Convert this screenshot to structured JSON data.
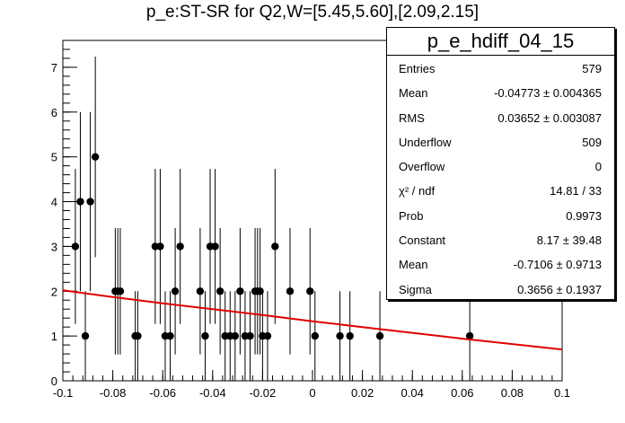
{
  "title": "p_e:ST-SR for Q2,W=[5.45,5.60],[2.09,2.15]",
  "stats": {
    "name": "p_e_hdiff_04_15",
    "rows": [
      {
        "label": "Entries",
        "value": "579"
      },
      {
        "label": "Mean",
        "value": "-0.04773 ± 0.004365"
      },
      {
        "label": "RMS",
        "value": "0.03652 ± 0.003087"
      },
      {
        "label": "Underflow",
        "value": "509"
      },
      {
        "label": "Overflow",
        "value": "0"
      },
      {
        "label": "χ² / ndf",
        "value": "14.81 / 33"
      },
      {
        "label": "Prob",
        "value": "0.9973"
      },
      {
        "label": "Constant",
        "value": "8.17 ± 39.48"
      },
      {
        "label": "Mean",
        "value": "-0.7106 ± 0.9713"
      },
      {
        "label": "Sigma",
        "value": "0.3656 ± 0.1937"
      }
    ]
  },
  "chart_data": {
    "type": "scatter",
    "xlim": [
      -0.1,
      0.1
    ],
    "ylim": [
      0,
      7.6
    ],
    "xticks": [
      "-0.1",
      "-0.08",
      "-0.06",
      "-0.04",
      "-0.02",
      "0",
      "0.02",
      "0.04",
      "0.06",
      "0.08",
      "0.1"
    ],
    "yticks": [
      "0",
      "1",
      "2",
      "3",
      "4",
      "5",
      "6",
      "7"
    ],
    "points": [
      {
        "x": -0.095,
        "y": 3,
        "err": 1.73
      },
      {
        "x": -0.093,
        "y": 4,
        "err": 2.0
      },
      {
        "x": -0.091,
        "y": 1,
        "err": 1.0
      },
      {
        "x": -0.089,
        "y": 4,
        "err": 2.0
      },
      {
        "x": -0.087,
        "y": 5,
        "err": 2.24
      },
      {
        "x": -0.079,
        "y": 2,
        "err": 1.41
      },
      {
        "x": -0.078,
        "y": 2,
        "err": 1.41
      },
      {
        "x": -0.077,
        "y": 2,
        "err": 1.41
      },
      {
        "x": -0.071,
        "y": 1,
        "err": 1.0
      },
      {
        "x": -0.07,
        "y": 1,
        "err": 1.0
      },
      {
        "x": -0.063,
        "y": 3,
        "err": 1.73
      },
      {
        "x": -0.061,
        "y": 3,
        "err": 1.73
      },
      {
        "x": -0.059,
        "y": 1,
        "err": 1.0
      },
      {
        "x": -0.057,
        "y": 1,
        "err": 1.0
      },
      {
        "x": -0.055,
        "y": 2,
        "err": 1.41
      },
      {
        "x": -0.053,
        "y": 3,
        "err": 1.73
      },
      {
        "x": -0.045,
        "y": 2,
        "err": 1.41
      },
      {
        "x": -0.043,
        "y": 1,
        "err": 1.0
      },
      {
        "x": -0.041,
        "y": 3,
        "err": 1.73
      },
      {
        "x": -0.039,
        "y": 3,
        "err": 1.73
      },
      {
        "x": -0.037,
        "y": 2,
        "err": 1.41
      },
      {
        "x": -0.035,
        "y": 1,
        "err": 1.0
      },
      {
        "x": -0.033,
        "y": 1,
        "err": 1.0
      },
      {
        "x": -0.031,
        "y": 1,
        "err": 1.0
      },
      {
        "x": -0.029,
        "y": 2,
        "err": 1.41
      },
      {
        "x": -0.027,
        "y": 1,
        "err": 1.0
      },
      {
        "x": -0.025,
        "y": 1,
        "err": 1.0
      },
      {
        "x": -0.023,
        "y": 2,
        "err": 1.41
      },
      {
        "x": -0.022,
        "y": 2,
        "err": 1.41
      },
      {
        "x": -0.021,
        "y": 2,
        "err": 1.41
      },
      {
        "x": -0.02,
        "y": 1,
        "err": 1.0
      },
      {
        "x": -0.018,
        "y": 1,
        "err": 1.0
      },
      {
        "x": -0.015,
        "y": 3,
        "err": 1.73
      },
      {
        "x": -0.009,
        "y": 2,
        "err": 1.41
      },
      {
        "x": -0.001,
        "y": 2,
        "err": 1.41
      },
      {
        "x": 0.001,
        "y": 1,
        "err": 1.0
      },
      {
        "x": 0.011,
        "y": 1,
        "err": 1.0
      },
      {
        "x": 0.015,
        "y": 1,
        "err": 1.0
      },
      {
        "x": 0.027,
        "y": 1,
        "err": 1.0
      },
      {
        "x": 0.063,
        "y": 1,
        "err": 1.0
      }
    ],
    "fit": {
      "color": "#e00000",
      "x": [
        -0.1,
        -0.08,
        -0.06,
        -0.04,
        -0.02,
        0.0,
        0.02,
        0.04,
        0.06,
        0.08,
        0.1
      ],
      "y": [
        2.02,
        1.87,
        1.73,
        1.6,
        1.47,
        1.33,
        1.2,
        1.07,
        0.94,
        0.82,
        0.7
      ]
    }
  }
}
